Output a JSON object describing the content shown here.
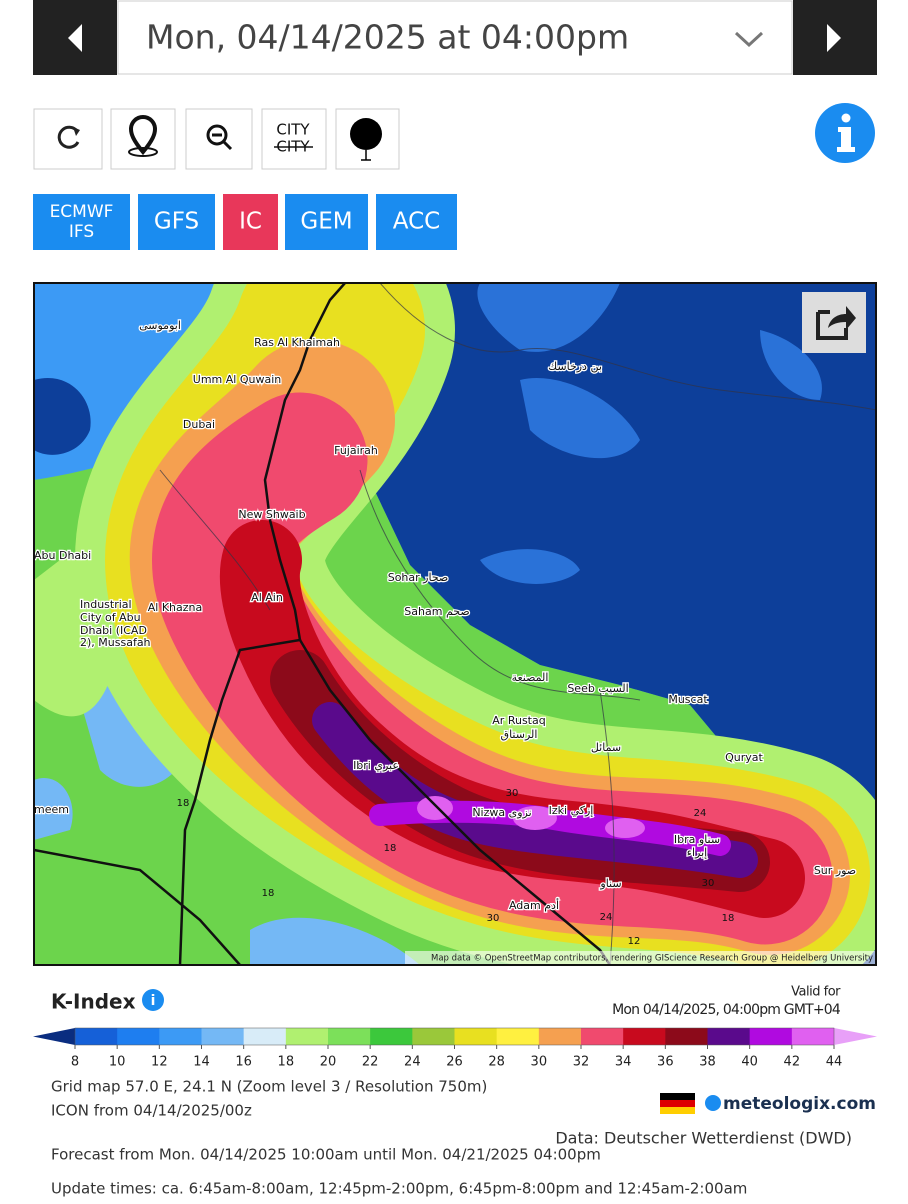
{
  "header": {
    "date": "Mon, 04/14/2025 at 04:00pm"
  },
  "toolbar": {
    "city_top": "CITY",
    "city_bottom": "CITY"
  },
  "models": [
    "ECMWF IFS",
    "GFS",
    "IC",
    "GEM",
    "ACC"
  ],
  "map": {
    "places": [
      "ابوموسى",
      "Ras Al Khaimah",
      "Umm Al Quwain",
      "Dubai",
      "Fujairah",
      "New Shwaib",
      "Abu Dhabi",
      "Al Ain",
      "Al Khazna",
      "Industrial",
      "City of Abu",
      "Dhabi (ICAD",
      "2), Mussafah",
      "Sohar صحار",
      "Saham صحم",
      "المصنعة",
      "Seeb السيب",
      "Muscat",
      "Ar Rustaq",
      "الرستاق",
      "سمائل",
      "Quryat",
      "Ibri عبري",
      "Nizwa نزوى",
      "Izki إزكي",
      "Ibra سناو",
      "إبراء",
      "Sur صور",
      "Adam أدم",
      "سناو",
      "meem",
      "بن درخاسك"
    ],
    "contour_labels": [
      18,
      18,
      30,
      18,
      24,
      30,
      30,
      24,
      18,
      12
    ],
    "attribution": "Map data © OpenStreetMap contributors, rendering GIScience Research Group @ Heidelberg University"
  },
  "legend": {
    "title": "K-Index",
    "valid_label": "Valid for",
    "valid_time": "Mon 04/14/2025, 04:00pm GMT+04",
    "ticks": [
      8,
      10,
      12,
      14,
      16,
      18,
      20,
      22,
      24,
      26,
      28,
      30,
      32,
      34,
      36,
      38,
      40,
      42,
      44
    ]
  },
  "info": {
    "grid": "Grid map 57.0 E, 24.1 N (Zoom level 3 / Resolution 750m)",
    "model_run": "ICON from 04/14/2025/00z",
    "brand": "meteologix.com",
    "source": "Data: Deutscher Wetterdienst (DWD)",
    "forecast": "Forecast from Mon. 04/14/2025 10:00am until Mon. 04/21/2025 04:00pm",
    "updates": "Update times: ca. 6:45am-8:00am, 12:45pm-2:00pm, 6:45pm-8:00pm and 12:45am-2:00am"
  }
}
